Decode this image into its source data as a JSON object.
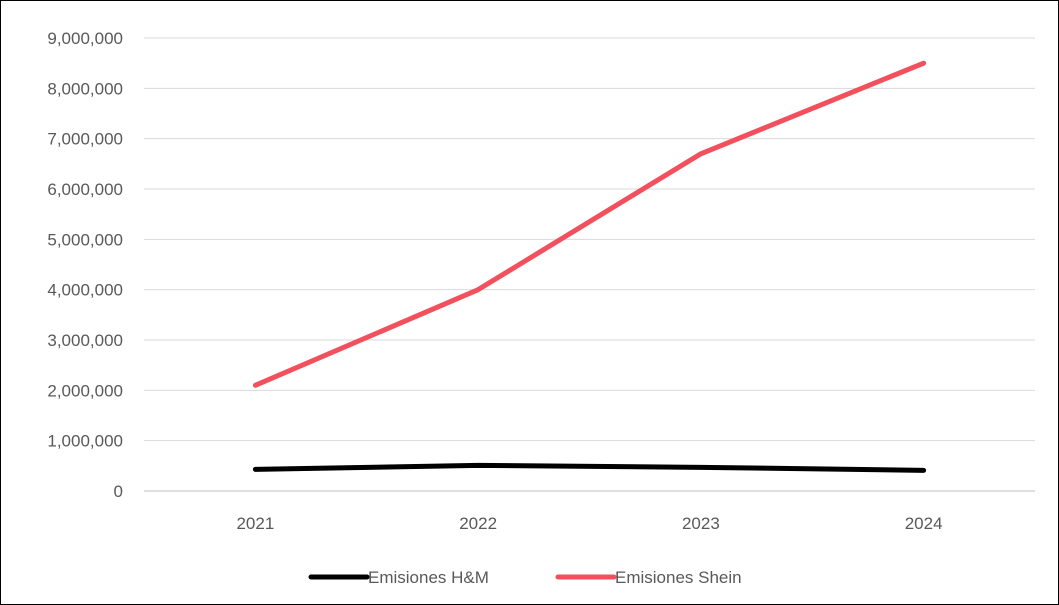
{
  "chart_data": {
    "type": "line",
    "title": "",
    "xlabel": "",
    "ylabel": "",
    "categories": [
      "2021",
      "2022",
      "2023",
      "2024"
    ],
    "ylim": [
      0,
      9000000
    ],
    "y_ticks": [
      "0",
      "1,000,000",
      "2,000,000",
      "3,000,000",
      "4,000,000",
      "5,000,000",
      "6,000,000",
      "7,000,000",
      "8,000,000",
      "9,000,000"
    ],
    "grid": true,
    "legend_position": "bottom",
    "series": [
      {
        "name": "Emisiones H&M",
        "color": "#000000",
        "values": [
          430000,
          510000,
          470000,
          410000
        ]
      },
      {
        "name": "Emisiones Shein",
        "color": "#F2505D",
        "values": [
          2100000,
          4000000,
          6700000,
          8500000
        ]
      }
    ]
  }
}
